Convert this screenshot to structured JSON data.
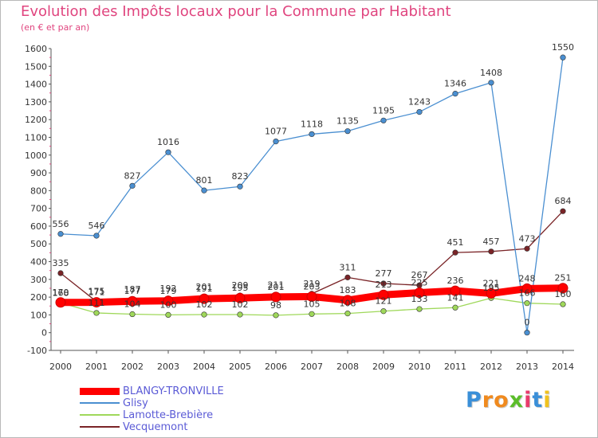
{
  "title": "Evolution des Impôts locaux pour la Commune par Habitant",
  "subtitle": "(en € et par an)",
  "brand": {
    "letters": [
      "P",
      "r",
      "o",
      "x",
      "i",
      "t",
      "i"
    ],
    "colors": [
      "#3a8fd8",
      "#f08a1e",
      "#f08a1e",
      "#5bbd2a",
      "#e83a6c",
      "#3a8fd8",
      "#f0c21e"
    ]
  },
  "chart_data": {
    "type": "line",
    "x": [
      "2000",
      "2001",
      "2002",
      "2003",
      "2004",
      "2005",
      "2006",
      "2007",
      "2008",
      "2009",
      "2010",
      "2011",
      "2012",
      "2013",
      "2014"
    ],
    "ylim": [
      -100,
      1600
    ],
    "yticks": [
      "-100",
      "0",
      "100",
      "200",
      "300",
      "400",
      "500",
      "600",
      "700",
      "800",
      "900",
      "1000",
      "1100",
      "1200",
      "1300",
      "1400",
      "1500",
      "1600"
    ],
    "grid": false,
    "legend_position": "bottom-left",
    "series": [
      {
        "name": "BLANGY-TRONVILLE",
        "color": "#ff0000",
        "values": [
          170,
          171,
          177,
          179,
          191,
          195,
          201,
          203,
          183,
          213,
          225,
          236,
          221,
          248,
          251
        ],
        "labels": [
          "170",
          "171",
          "177",
          "179",
          "191",
          "195",
          "201",
          "203",
          "183",
          "213",
          "225",
          "236",
          "221",
          "248",
          "251"
        ]
      },
      {
        "name": "Glisy",
        "color": "#4a8fd1",
        "values": [
          556,
          546,
          827,
          1016,
          801,
          823,
          1077,
          1118,
          1135,
          1195,
          1243,
          1346,
          1408,
          0,
          1550
        ],
        "labels": [
          "556",
          "546",
          "827",
          "1016",
          "801",
          "823",
          "1077",
          "1118",
          "1135",
          "1195",
          "1243",
          "1346",
          "1408",
          "0",
          "1550"
        ]
      },
      {
        "name": "Lamotte-Brebière",
        "color": "#9fd85a",
        "values": [
          168,
          111,
          104,
          100,
          102,
          102,
          98,
          105,
          108,
          121,
          133,
          141,
          195,
          166,
          160
        ],
        "labels": [
          "168",
          "111",
          "104",
          "100",
          "102",
          "102",
          "98",
          "105",
          "108",
          "121",
          "133",
          "141",
          "195",
          "166",
          "160"
        ]
      },
      {
        "name": "Vecquemont",
        "color": "#7a2427",
        "values": [
          335,
          175,
          187,
          192,
          201,
          209,
          211,
          219,
          311,
          277,
          267,
          451,
          457,
          473,
          684
        ],
        "labels": [
          "335",
          "175",
          "187",
          "192",
          "201",
          "209",
          "211",
          "219",
          "311",
          "277",
          "267",
          "451",
          "457",
          "473",
          "684"
        ]
      }
    ]
  }
}
